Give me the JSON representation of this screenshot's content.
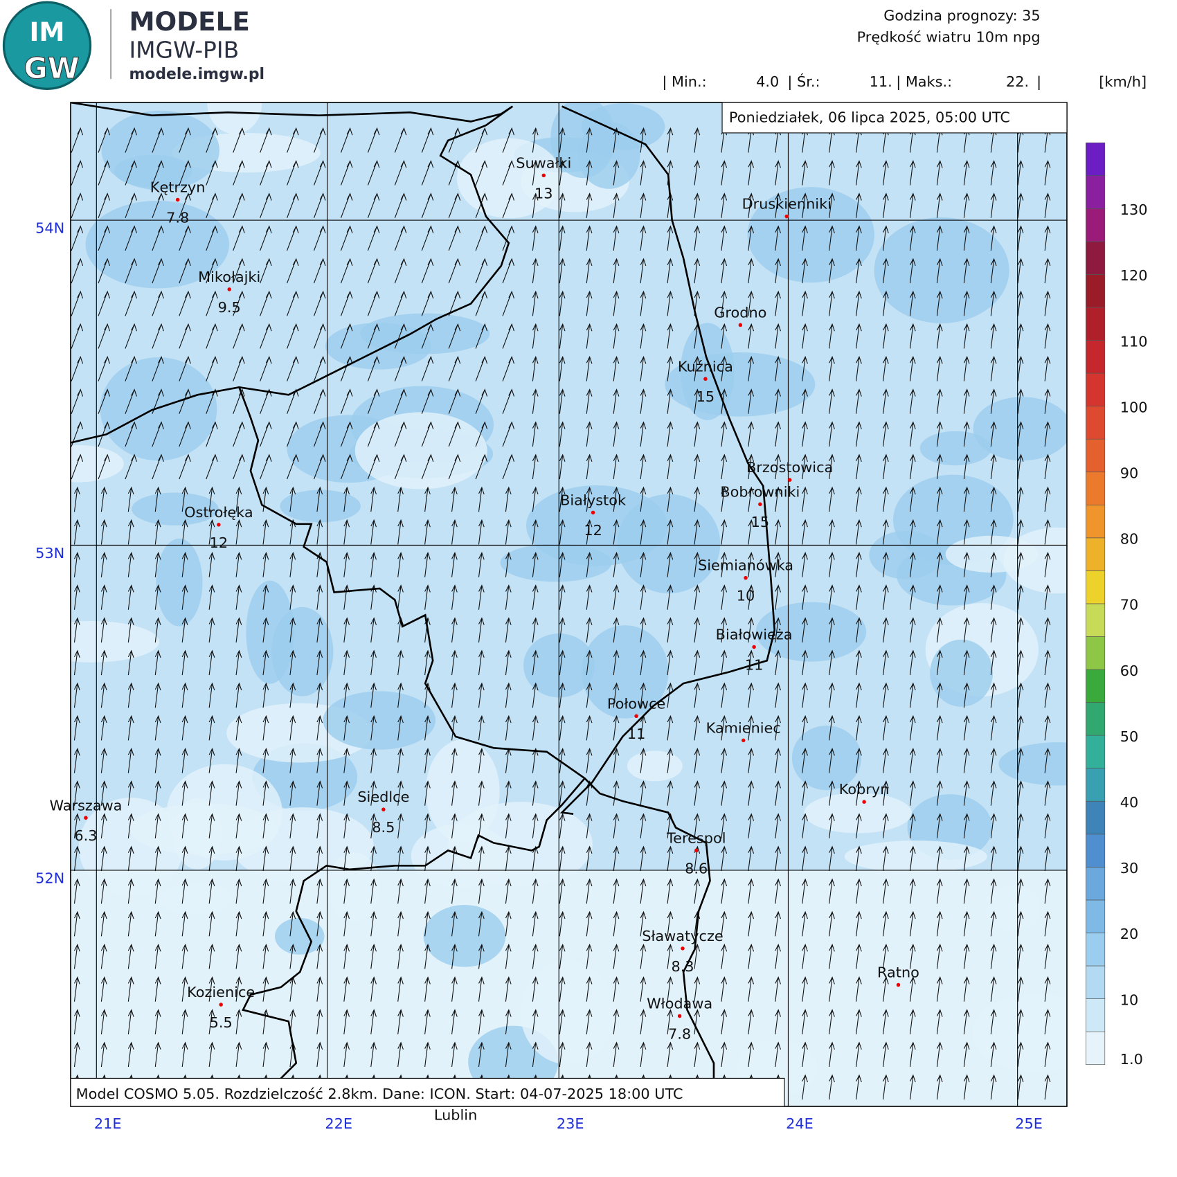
{
  "header": {
    "logo_top": "IM",
    "logo_bottom": "GW",
    "brand": "MODELE",
    "institute": "IMGW-PIB",
    "url": "modele.imgw.pl"
  },
  "info": {
    "forecast_hour_label": "Godzina prognozy:",
    "forecast_hour": "35",
    "variable": "Prędkość wiatru 10m npg",
    "min_label": "| Min.:",
    "min": "4.0",
    "mean_label": "| Śr.:",
    "mean": "11.",
    "max_label": "| Maks.:",
    "max": "22.",
    "end_bar": "|",
    "unit": "[km/h]"
  },
  "date": "Poniedziałek, 06 lipca 2025, 05:00 UTC",
  "footer": "Model COSMO 5.05. Rozdzielczość 2.8km. Dane: ICON. Start: 04-07-2025 18:00 UTC",
  "lon_labels": [
    "21E",
    "22E",
    "23E",
    "24E",
    "25E"
  ],
  "lat_labels": [
    "54N",
    "53N",
    "52N"
  ],
  "cities": [
    {
      "name": "Kętrzyn",
      "value": "7.8"
    },
    {
      "name": "Suwałki",
      "value": "13"
    },
    {
      "name": "Druskienniki"
    },
    {
      "name": "Mikołajki",
      "value": "9.5"
    },
    {
      "name": "Grodno"
    },
    {
      "name": "Kuźnica",
      "value": "15"
    },
    {
      "name": "Brzostowica"
    },
    {
      "name": "Bobrowniki",
      "value": "15"
    },
    {
      "name": "Białystok",
      "value": "12"
    },
    {
      "name": "Ostrołęka",
      "value": "12"
    },
    {
      "name": "Siemianówka",
      "value": "10"
    },
    {
      "name": "Białowieża",
      "value": "11"
    },
    {
      "name": "Połowce",
      "value": "11"
    },
    {
      "name": "Kamieniec"
    },
    {
      "name": "Kobryn"
    },
    {
      "name": "Warszawa",
      "value": "6.3"
    },
    {
      "name": "Siedlce",
      "value": "8.5"
    },
    {
      "name": "Terespol",
      "value": "8.6"
    },
    {
      "name": "Sławatycze",
      "value": "8.3"
    },
    {
      "name": "Ratno"
    },
    {
      "name": "Kozienice",
      "value": "5.5"
    },
    {
      "name": "Włodawa",
      "value": "7.8"
    },
    {
      "name": "Lublin"
    }
  ],
  "colorbar": {
    "lim": [
      0,
      140
    ],
    "ticks": [
      {
        "value": 1,
        "label": "1.0"
      },
      10,
      20,
      30,
      40,
      50,
      60,
      70,
      80,
      90,
      100,
      110,
      120,
      130
    ],
    "colors": [
      "#e6f3fa",
      "#cde8f6",
      "#b2daf2",
      "#9acdee",
      "#7fb9e6",
      "#6aa8de",
      "#4f8fcf",
      "#3e84b8",
      "#38a0b0",
      "#33b09a",
      "#30a870",
      "#3aaa3c",
      "#8ec646",
      "#c8db58",
      "#ecd22a",
      "#eeb12a",
      "#f0942c",
      "#ec7a2c",
      "#e5602f",
      "#de4a2f",
      "#d4352e",
      "#c5272c",
      "#b0202a",
      "#9a1c28",
      "#8e1a40",
      "#9a1c78",
      "#8a20a0",
      "#6a1ec4"
    ]
  }
}
